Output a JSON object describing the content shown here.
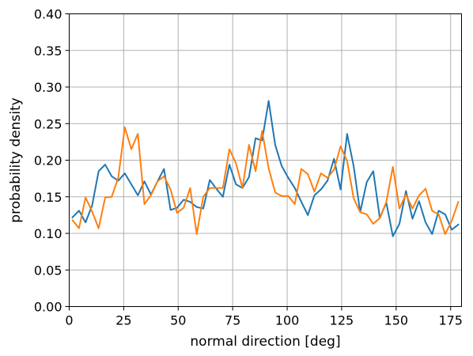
{
  "chart_data": {
    "type": "line",
    "title": "",
    "xlabel": "normal direction [deg]",
    "ylabel": "probability density",
    "xlim": [
      0,
      180
    ],
    "ylim": [
      0,
      0.4
    ],
    "grid": true,
    "xticks": [
      0,
      25,
      50,
      75,
      100,
      125,
      150,
      175
    ],
    "xtick_labels": [
      "0",
      "25",
      "50",
      "75",
      "100",
      "125",
      "150",
      "175"
    ],
    "yticks": [
      0,
      0.05,
      0.1,
      0.15,
      0.2,
      0.25,
      0.3,
      0.35,
      0.4
    ],
    "ytick_labels": [
      "0.00",
      "0.05",
      "0.10",
      "0.15",
      "0.20",
      "0.25",
      "0.30",
      "0.35",
      "0.40"
    ],
    "x": [
      1.5,
      4.5,
      7.5,
      10.5,
      13.5,
      16.5,
      19.5,
      22.5,
      25.5,
      28.5,
      31.5,
      34.5,
      37.5,
      40.5,
      43.5,
      46.5,
      49.5,
      52.5,
      55.5,
      58.5,
      61.5,
      64.5,
      67.5,
      70.5,
      73.5,
      76.5,
      79.5,
      82.5,
      85.5,
      88.5,
      91.5,
      94.5,
      97.5,
      100.5,
      103.5,
      106.5,
      109.5,
      112.5,
      115.5,
      118.5,
      121.5,
      124.5,
      127.5,
      130.5,
      133.5,
      136.5,
      139.5,
      142.5,
      145.5,
      148.5,
      151.5,
      154.5,
      157.5,
      160.5,
      163.5,
      166.5,
      169.5,
      172.5,
      175.5,
      178.5
    ],
    "series": [
      {
        "color": "#1f77b4",
        "values": [
          0.122,
          0.131,
          0.115,
          0.138,
          0.185,
          0.194,
          0.178,
          0.172,
          0.182,
          0.167,
          0.152,
          0.171,
          0.153,
          0.171,
          0.188,
          0.132,
          0.135,
          0.146,
          0.143,
          0.136,
          0.134,
          0.173,
          0.161,
          0.15,
          0.194,
          0.167,
          0.162,
          0.177,
          0.23,
          0.227,
          0.281,
          0.221,
          0.192,
          0.176,
          0.162,
          0.143,
          0.125,
          0.152,
          0.16,
          0.172,
          0.202,
          0.16,
          0.236,
          0.192,
          0.129,
          0.17,
          0.185,
          0.121,
          0.142,
          0.096,
          0.113,
          0.158,
          0.12,
          0.144,
          0.115,
          0.099,
          0.131,
          0.126,
          0.105,
          0.112
        ]
      },
      {
        "color": "#ff7f0e",
        "values": [
          0.118,
          0.107,
          0.149,
          0.13,
          0.107,
          0.149,
          0.15,
          0.176,
          0.245,
          0.215,
          0.236,
          0.14,
          0.152,
          0.171,
          0.178,
          0.16,
          0.128,
          0.135,
          0.162,
          0.099,
          0.15,
          0.162,
          0.162,
          0.162,
          0.215,
          0.196,
          0.162,
          0.221,
          0.185,
          0.24,
          0.189,
          0.156,
          0.151,
          0.151,
          0.14,
          0.188,
          0.181,
          0.157,
          0.182,
          0.176,
          0.187,
          0.219,
          0.199,
          0.148,
          0.129,
          0.126,
          0.113,
          0.121,
          0.143,
          0.191,
          0.134,
          0.153,
          0.134,
          0.152,
          0.161,
          0.131,
          0.126,
          0.099,
          0.117,
          0.143
        ]
      }
    ]
  }
}
